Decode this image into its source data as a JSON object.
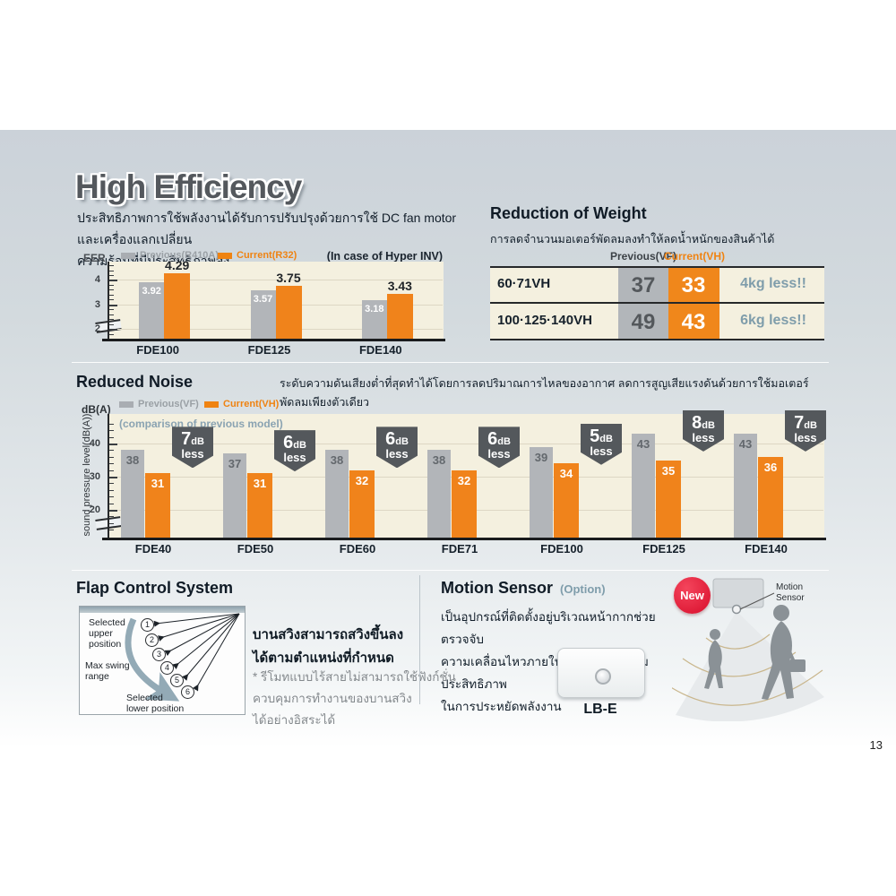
{
  "page": {
    "number": "13"
  },
  "high_efficiency": {
    "title": "High Efficiency",
    "desc": "ประสิทธิภาพการใช้พลังงานได้รับการปรับปรุงด้วยการใช้ DC fan motor และเครื่องแลกเปลี่ยน\nความร้อนที่มีประสิทธิภาพสูง"
  },
  "chart_data": [
    {
      "id": "eer",
      "type": "bar",
      "ylabel": "EER",
      "note": "(In case of Hyper INV)",
      "categories": [
        "FDE100",
        "FDE125",
        "FDE140"
      ],
      "series": [
        {
          "name": "Previous(R410A)",
          "color": "#b2b5b9",
          "values": [
            3.92,
            3.57,
            3.18
          ]
        },
        {
          "name": "Current(R32)",
          "color": "#f0831b",
          "values": [
            4.29,
            3.75,
            3.43
          ]
        }
      ],
      "yticks": [
        2,
        3,
        4
      ],
      "ylim": [
        1.6,
        4.75
      ],
      "grid": true,
      "axis_break": true,
      "legend_position": "top"
    },
    {
      "id": "noise",
      "type": "bar",
      "unit": "dB(A)",
      "ylabel": "sound pressure level(dB(A))",
      "annotation": "(comparison of previous model)",
      "categories": [
        "FDE40",
        "FDE50",
        "FDE60",
        "FDE71",
        "FDE100",
        "FDE125",
        "FDE140"
      ],
      "series": [
        {
          "name": "Previous(VF)",
          "color": "#b2b5b9",
          "values": [
            38,
            37,
            38,
            38,
            39,
            43,
            43
          ]
        },
        {
          "name": "Current(VH)",
          "color": "#f0831b",
          "values": [
            31,
            31,
            32,
            32,
            34,
            35,
            36
          ]
        }
      ],
      "badges": [
        "7",
        "6",
        "6",
        "6",
        "5",
        "8",
        "7"
      ],
      "yticks": [
        20,
        30,
        40
      ],
      "ylim": [
        13,
        49
      ],
      "grid": true,
      "axis_break": true,
      "legend_position": "top"
    }
  ],
  "weight": {
    "title": "Reduction of Weight",
    "desc": "การลดจำนวนมอเตอร์พัดลมลงทำให้ลดน้ำหนักของสินค้าได้",
    "col_previous": "Previous(VF)",
    "col_current": "Current(VH)",
    "rows": [
      {
        "model": "60·71VH",
        "previous": "37",
        "current": "33",
        "saving": "4kg less!!"
      },
      {
        "model": "100·125·140VH",
        "previous": "49",
        "current": "43",
        "saving": "6kg less!!"
      }
    ]
  },
  "noise": {
    "title": "Reduced Noise",
    "desc": "ระดับความดันเสียงต่ำที่สุดทำได้โดยการลดปริมาณการไหลของอากาศ ลดการสูญเสียแรงดันด้วยการใช้มอเตอร์พัดลมเพียงตัวเดียว\nและปรับรูปร่างของท่อและตัวจ่ายไฟให้เหมาะสม",
    "badge_suffix_db": "dB",
    "badge_less": "less"
  },
  "flap": {
    "title": "Flap Control System",
    "label_upper": "Selected\nupper\nposition",
    "label_swing": "Max swing\nrange",
    "label_lower": "Selected\nlower position",
    "positions": [
      "1",
      "2",
      "3",
      "4",
      "5",
      "6"
    ],
    "bold_text": "บานสวิงสามารถสวิงขึ้นลง\nได้ตามตำแหน่งที่กำหนด",
    "note": "* รีโมทแบบไร้สายไม่สามารถใช้ฟังก์ชั่น\nควบคุมการทำงานของบานสวิง\nได้อย่างอิสระได้"
  },
  "motion": {
    "title": "Motion Sensor",
    "option": "(Option)",
    "desc": "เป็นอุปกรณ์ที่ติดตั้งอยู่บริเวณหน้ากากช่วยตรวจจับ\nความเคลื่อนไหวภายในห้อง เพื่อช่วยเพิ่มประสิทธิภาพ\nในการประหยัดพลังงาน",
    "model": "LB-E",
    "new_badge": "New",
    "sensor_label": "Motion\nSensor"
  },
  "colors": {
    "previous_bar": "#b2b5b9",
    "current_bar": "#f0831b",
    "plot_background": "#f4f0df",
    "badge": "#54585c",
    "accent_bluegray": "#7f9dab",
    "new_red": "#d80d2b"
  }
}
